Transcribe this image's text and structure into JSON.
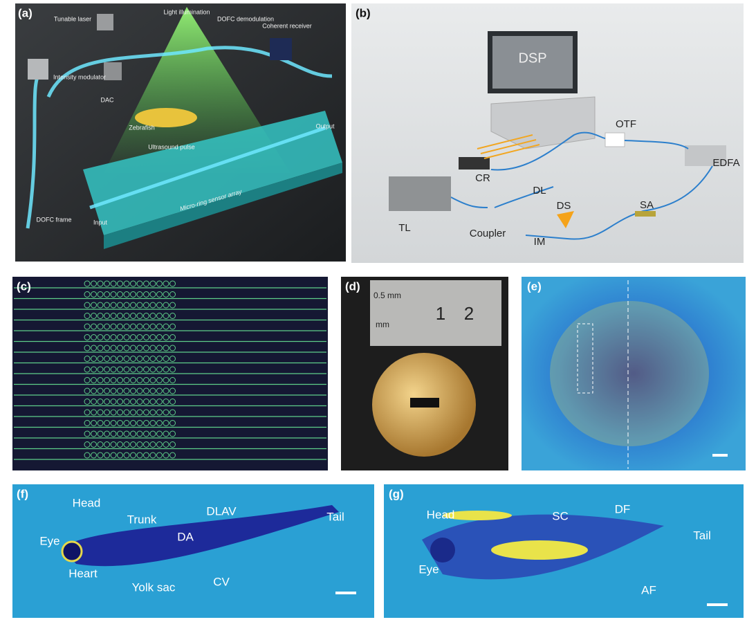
{
  "panels": [
    {
      "label": "(a)",
      "annotations": [
        "Light illumination",
        "Tunable laser",
        "DOFC demodulation",
        "Coherent receiver",
        "Intensity modulator",
        "DAC",
        "Zebrafish",
        "Ultrasound pulse",
        "Output",
        "Micro-ring sensor array",
        "DOFC frame",
        "Input"
      ]
    },
    {
      "label": "(b)",
      "annotations": [
        "DSP",
        "OTF",
        "EDFA",
        "CR",
        "DL",
        "TL",
        "DS",
        "Coupler",
        "IM",
        "SA"
      ]
    },
    {
      "label": "(c)"
    },
    {
      "label": "(d)",
      "annotations": [
        "0.5 mm",
        "mm",
        "1",
        "2"
      ]
    },
    {
      "label": "(e)"
    },
    {
      "label": "(f)",
      "annotations": [
        "Head",
        "Trunk",
        "DLAV",
        "Tail",
        "Eye",
        "DA",
        "Heart",
        "Yolk sac",
        "CV"
      ]
    },
    {
      "label": "(g)",
      "annotations": [
        "Head",
        "SC",
        "DF",
        "Tail",
        "Eye",
        "AF"
      ]
    }
  ]
}
